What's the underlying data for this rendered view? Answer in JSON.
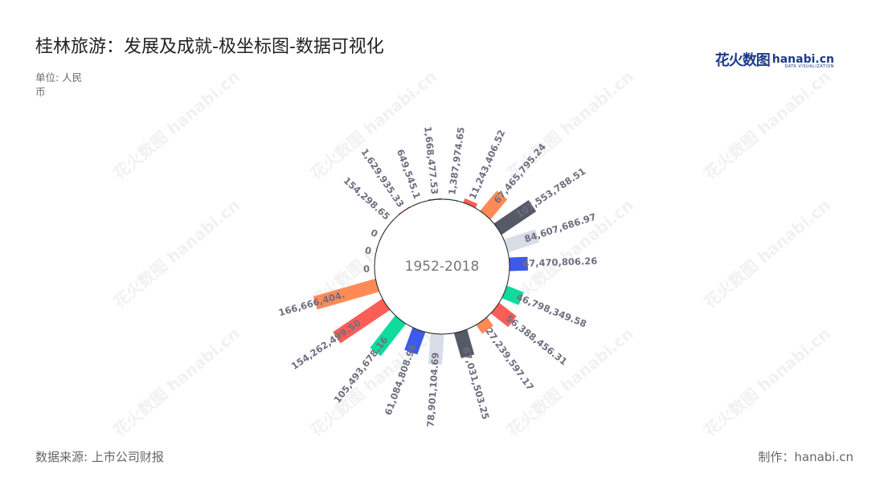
{
  "title": "桂林旅游：发展及成就-极坐标图-数据可视化",
  "unit": "单位: 人民币",
  "source": "数据来源: 上市公司财报",
  "credit": "制作：hanabi.cn",
  "logo": {
    "cn": "花火数图",
    "en": "hanabi.cn",
    "sub": "DATA VISUALIZATION"
  },
  "watermark": "花火数图 hanabi.cn",
  "colors": {
    "palette": [
      "#0fdb9c",
      "#fb5e57",
      "#ff8a56",
      "#555a66",
      "#d9dde7",
      "#3d5ae8"
    ]
  },
  "chart_data": {
    "type": "bar",
    "coordinate": "polar",
    "center_label": "1952-2018",
    "title": "桂林旅游：发展及成就-极坐标图-数据可视化",
    "unit": "单位: 人民币",
    "values": [
      1387974.65,
      11243406.52,
      67465795.24,
      107553788.51,
      84607686.97,
      47470806.26,
      46798349.58,
      56388456.31,
      27239597.17,
      67031503.25,
      78901104.69,
      61084808.96,
      105493678.16,
      154262499.5,
      166666404.0,
      0,
      0,
      0,
      154298.65,
      1629935.33,
      649545.1,
      1668477.53
    ],
    "labels": [
      "1,387,974.65",
      "11,243,406.52",
      "67,465,795.24",
      "107,553,788.51",
      "84,607,686.97",
      "47,470,806.26",
      "46,798,349.58",
      "56,388,456.31",
      "27,239,597.17",
      "67,031,503.25",
      "78,901,104.69",
      "61,084,808.96",
      "105,493,678.16",
      "154,262,499.50",
      "166,666,404.",
      "0",
      "0",
      "0",
      "154,298.65",
      "1,629,935.33",
      "649,545.1",
      "1,668,477.53"
    ],
    "angles_deg": [
      8,
      24,
      40,
      56,
      72,
      88,
      112,
      128,
      144,
      164,
      184,
      200,
      218,
      236,
      254,
      268,
      282,
      296,
      312,
      326,
      340,
      354
    ],
    "max_value": 166666404
  }
}
